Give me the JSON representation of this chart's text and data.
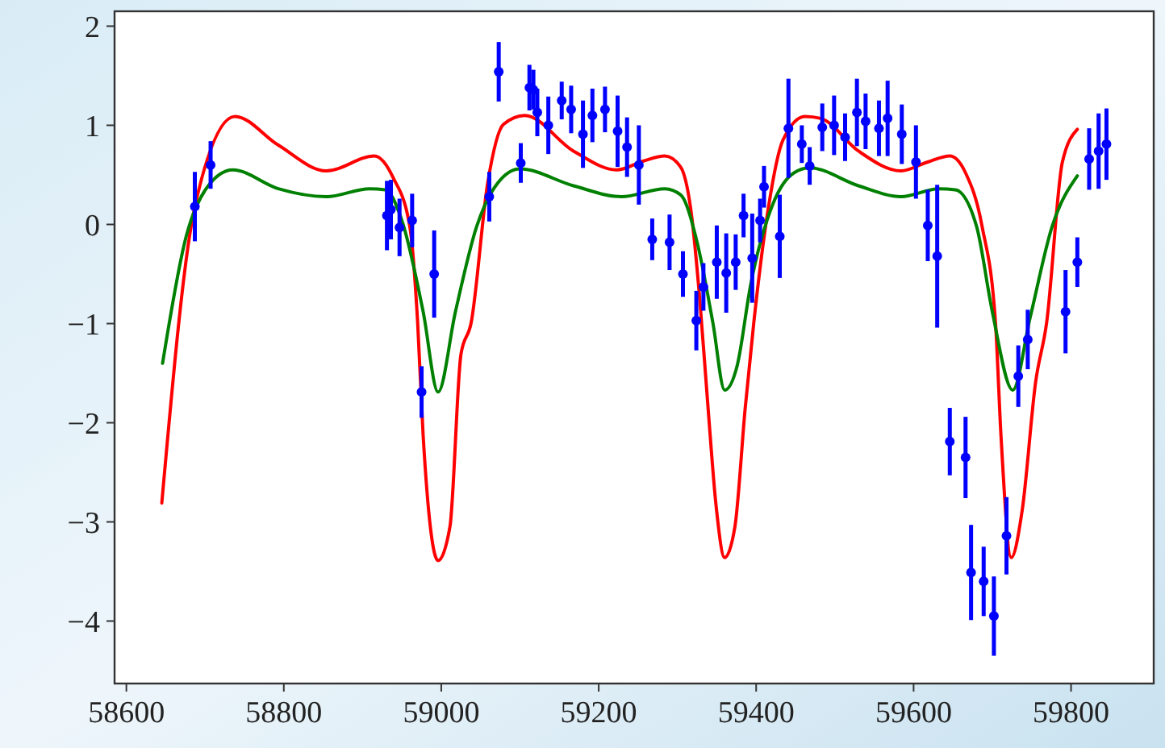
{
  "chart_data": {
    "type": "scatter",
    "xlim": [
      58585,
      59905
    ],
    "ylim": [
      -4.63,
      2.15
    ],
    "xticks": [
      58600,
      58800,
      59000,
      59200,
      59400,
      59600,
      59800
    ],
    "yticks": [
      {
        "value": -4,
        "label": "−4"
      },
      {
        "value": -3,
        "label": "−3"
      },
      {
        "value": -2,
        "label": "−2"
      },
      {
        "value": -1,
        "label": "−1"
      },
      0,
      1,
      2
    ],
    "series": [
      {
        "type": "line",
        "color": "#ff0000",
        "x": [
          58645,
          58687,
          58738,
          58793,
          58854,
          58915,
          58939,
          58960,
          58970,
          58977,
          58996,
          59011,
          59025,
          59038,
          59059,
          59079,
          59106,
          59168,
          59223,
          59257,
          59284,
          59304,
          59318,
          59328,
          59339,
          59349,
          59360,
          59373,
          59386,
          59397,
          59414,
          59434,
          59462,
          59482,
          59530,
          59584,
          59618,
          59646,
          59666,
          59687,
          59704,
          59711,
          59724,
          59738,
          59755,
          59769,
          59789,
          59808
        ],
        "values": [
          -2.81,
          0.18,
          1.09,
          0.8,
          0.54,
          0.69,
          0.47,
          -0.02,
          -0.99,
          -2.13,
          -3.39,
          -3.05,
          -1.31,
          -0.99,
          0.42,
          1.01,
          1.1,
          0.74,
          0.55,
          0.64,
          0.69,
          0.58,
          0.09,
          -0.72,
          -1.86,
          -2.83,
          -3.36,
          -3.05,
          -1.86,
          -0.99,
          0.09,
          0.85,
          1.09,
          1.07,
          0.74,
          0.54,
          0.63,
          0.69,
          0.52,
          -0.02,
          -0.99,
          -2.13,
          -3.36,
          -2.88,
          -1.59,
          -0.99,
          0.63,
          0.96
        ]
      },
      {
        "type": "line",
        "color": "#008000",
        "x": [
          58646,
          58676,
          58704,
          58735,
          58793,
          58854,
          58909,
          58929,
          58950,
          58977,
          58996,
          59018,
          59045,
          59072,
          59100,
          59168,
          59229,
          59284,
          59304,
          59325,
          59345,
          59360,
          59376,
          59393,
          59421,
          59448,
          59468,
          59530,
          59584,
          59632,
          59653,
          59680,
          59700,
          59726,
          59748,
          59776,
          59808
        ],
        "values": [
          -1.4,
          -0.12,
          0.39,
          0.55,
          0.36,
          0.28,
          0.36,
          0.35,
          0.04,
          -0.88,
          -1.69,
          -0.88,
          -0.02,
          0.42,
          0.56,
          0.39,
          0.28,
          0.36,
          0.3,
          -0.18,
          -0.99,
          -1.67,
          -1.42,
          -0.61,
          0.2,
          0.52,
          0.57,
          0.39,
          0.28,
          0.36,
          0.35,
          -0.02,
          -0.88,
          -1.67,
          -0.94,
          -0.02,
          0.49
        ]
      },
      {
        "marker": "circle",
        "color": "#0000ff",
        "x": [
          58687,
          58707,
          58931,
          58936,
          58947,
          58963,
          58975,
          58991,
          59061,
          59073,
          59101,
          59112,
          59117,
          59122,
          59136,
          59153,
          59165,
          59180,
          59192,
          59208,
          59224,
          59236,
          59251,
          59268,
          59290,
          59307,
          59324,
          59333,
          59350,
          59362,
          59374,
          59384,
          59395,
          59405,
          59410,
          59430,
          59441,
          59458,
          59468,
          59484,
          59499,
          59513,
          59528,
          59539,
          59556,
          59567,
          59585,
          59603,
          59618,
          59630,
          59646,
          59666,
          59673,
          59689,
          59702,
          59718,
          59733,
          59745,
          59793,
          59808,
          59823,
          59835,
          59845
        ],
        "values": [
          0.18,
          0.6,
          0.09,
          0.15,
          -0.03,
          0.04,
          -1.69,
          -0.5,
          0.28,
          1.54,
          0.62,
          1.38,
          1.36,
          1.13,
          1.0,
          1.25,
          1.16,
          0.91,
          1.1,
          1.16,
          0.94,
          0.78,
          0.6,
          -0.15,
          -0.18,
          -0.5,
          -0.97,
          -0.63,
          -0.38,
          -0.49,
          -0.38,
          0.09,
          -0.34,
          0.04,
          0.38,
          -0.12,
          0.97,
          0.81,
          0.59,
          0.98,
          1.0,
          0.88,
          1.13,
          1.04,
          0.97,
          1.07,
          0.91,
          0.63,
          -0.01,
          -0.32,
          -2.19,
          -2.35,
          -3.51,
          -3.6,
          -3.95,
          -3.14,
          -1.53,
          -1.16,
          -0.88,
          -0.38,
          0.66,
          0.74,
          0.81
        ],
        "errors": [
          0.35,
          0.24,
          0.35,
          0.3,
          0.29,
          0.27,
          0.26,
          0.44,
          0.25,
          0.3,
          0.2,
          0.23,
          0.2,
          0.24,
          0.29,
          0.19,
          0.24,
          0.34,
          0.27,
          0.23,
          0.36,
          0.3,
          0.4,
          0.21,
          0.28,
          0.23,
          0.3,
          0.24,
          0.37,
          0.4,
          0.28,
          0.22,
          0.45,
          0.22,
          0.21,
          0.42,
          0.5,
          0.19,
          0.19,
          0.24,
          0.3,
          0.24,
          0.34,
          0.28,
          0.28,
          0.38,
          0.3,
          0.37,
          0.36,
          0.72,
          0.34,
          0.41,
          0.48,
          0.35,
          0.4,
          0.39,
          0.31,
          0.3,
          0.42,
          0.25,
          0.31,
          0.38,
          0.36
        ]
      }
    ]
  }
}
